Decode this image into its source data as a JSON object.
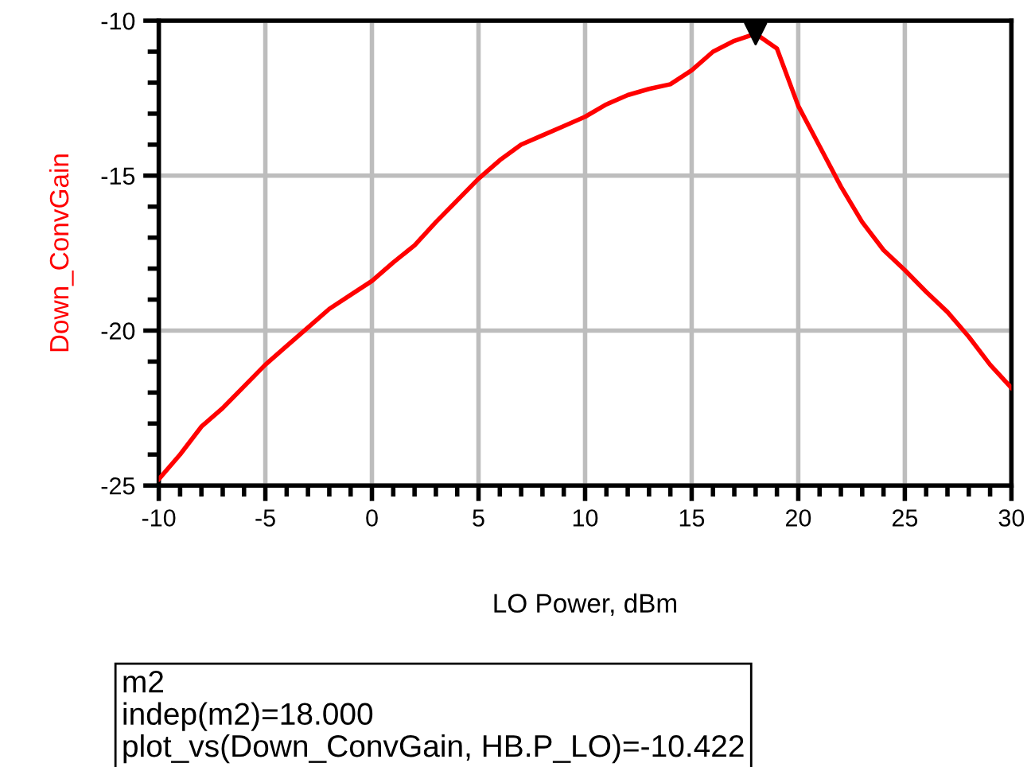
{
  "chart_data": {
    "type": "line",
    "xlabel": "LO Power, dBm",
    "ylabel": "Down_ConvGain",
    "x": [
      -10,
      -9,
      -8,
      -7,
      -6,
      -5,
      -4,
      -3,
      -2,
      -1,
      0,
      1,
      2,
      3,
      4,
      5,
      6,
      7,
      8,
      9,
      10,
      11,
      12,
      13,
      14,
      15,
      16,
      17,
      18,
      19,
      20,
      21,
      22,
      23,
      24,
      25,
      26,
      27,
      28,
      29,
      30
    ],
    "series": [
      {
        "color": "#ff0000",
        "values": [
          -24.8,
          -24.0,
          -23.1,
          -22.5,
          -21.8,
          -21.1,
          -20.5,
          -19.9,
          -19.3,
          -18.85,
          -18.4,
          -17.8,
          -17.25,
          -16.5,
          -15.8,
          -15.1,
          -14.5,
          -14.0,
          -13.7,
          -13.4,
          -13.1,
          -12.7,
          -12.4,
          -12.2,
          -12.05,
          -11.6,
          -11.0,
          -10.65,
          -10.42,
          -10.9,
          -12.75,
          -14.05,
          -15.35,
          -16.5,
          -17.4,
          -18.05,
          -18.75,
          -19.4,
          -20.2,
          -21.1,
          -21.85
        ]
      },
      {
        "type": "scatter",
        "color": "#000000",
        "marker": "triangle",
        "x": [
          18
        ],
        "values": [
          -10.42
        ]
      }
    ],
    "xlim": [
      -10,
      30
    ],
    "xticks": [
      -10,
      -5,
      0,
      5,
      10,
      15,
      20,
      25,
      30
    ],
    "ylim": [
      -25,
      -10
    ],
    "yticks": [
      -25,
      -20,
      -15,
      -10
    ],
    "grid": true,
    "marker": "none",
    "line_style": "solid",
    "annotations": [
      "m2\nindep(m2)=18.000\nplot_vs(Down_ConvGain, HB.P_LO)=-10.422"
    ]
  }
}
